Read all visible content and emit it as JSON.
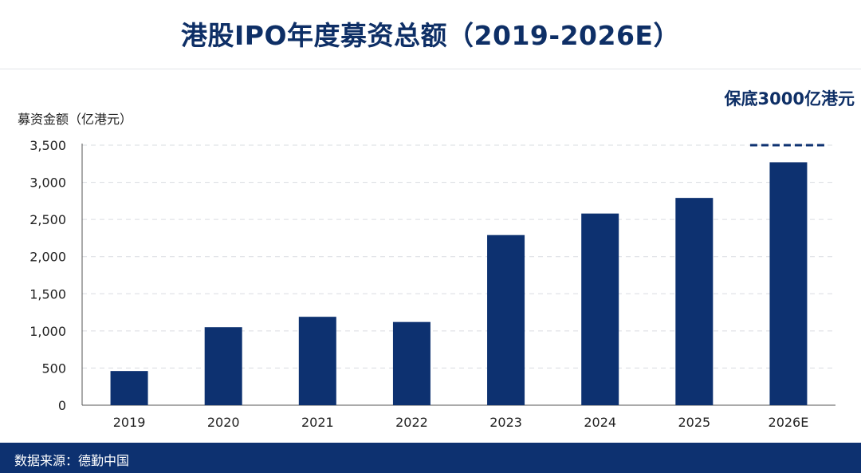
{
  "title": "港股IPO年度募资总额（2019-2026E）",
  "source": "数据来源：德勤中国",
  "colors": {
    "bar": "#0d3170",
    "title": "#0e2f66",
    "grid": "#d9dce1",
    "footer": "#0d3170"
  },
  "chart_data": {
    "type": "bar",
    "title": "港股IPO年度募资总额（2019-2026E）",
    "ylabel": "募资金额（亿港元）",
    "xlabel": "",
    "categories": [
      "2019",
      "2020",
      "2021",
      "2022",
      "2023",
      "2024",
      "2025",
      "2026E"
    ],
    "values": [
      460,
      1050,
      1190,
      1120,
      2290,
      2580,
      2790,
      3270
    ],
    "ylim": [
      0,
      3500
    ],
    "yticks": [
      0,
      500,
      1000,
      1500,
      2000,
      2500,
      3000,
      3500
    ],
    "ytick_labels": [
      "0",
      "500",
      "1,000",
      "1,500",
      "2,000",
      "2,500",
      "3,000",
      "3,500"
    ],
    "grid": true,
    "annotation": {
      "text": "保底3000亿港元",
      "category": "2026E",
      "value": 3500,
      "style": "dashed-line"
    }
  }
}
